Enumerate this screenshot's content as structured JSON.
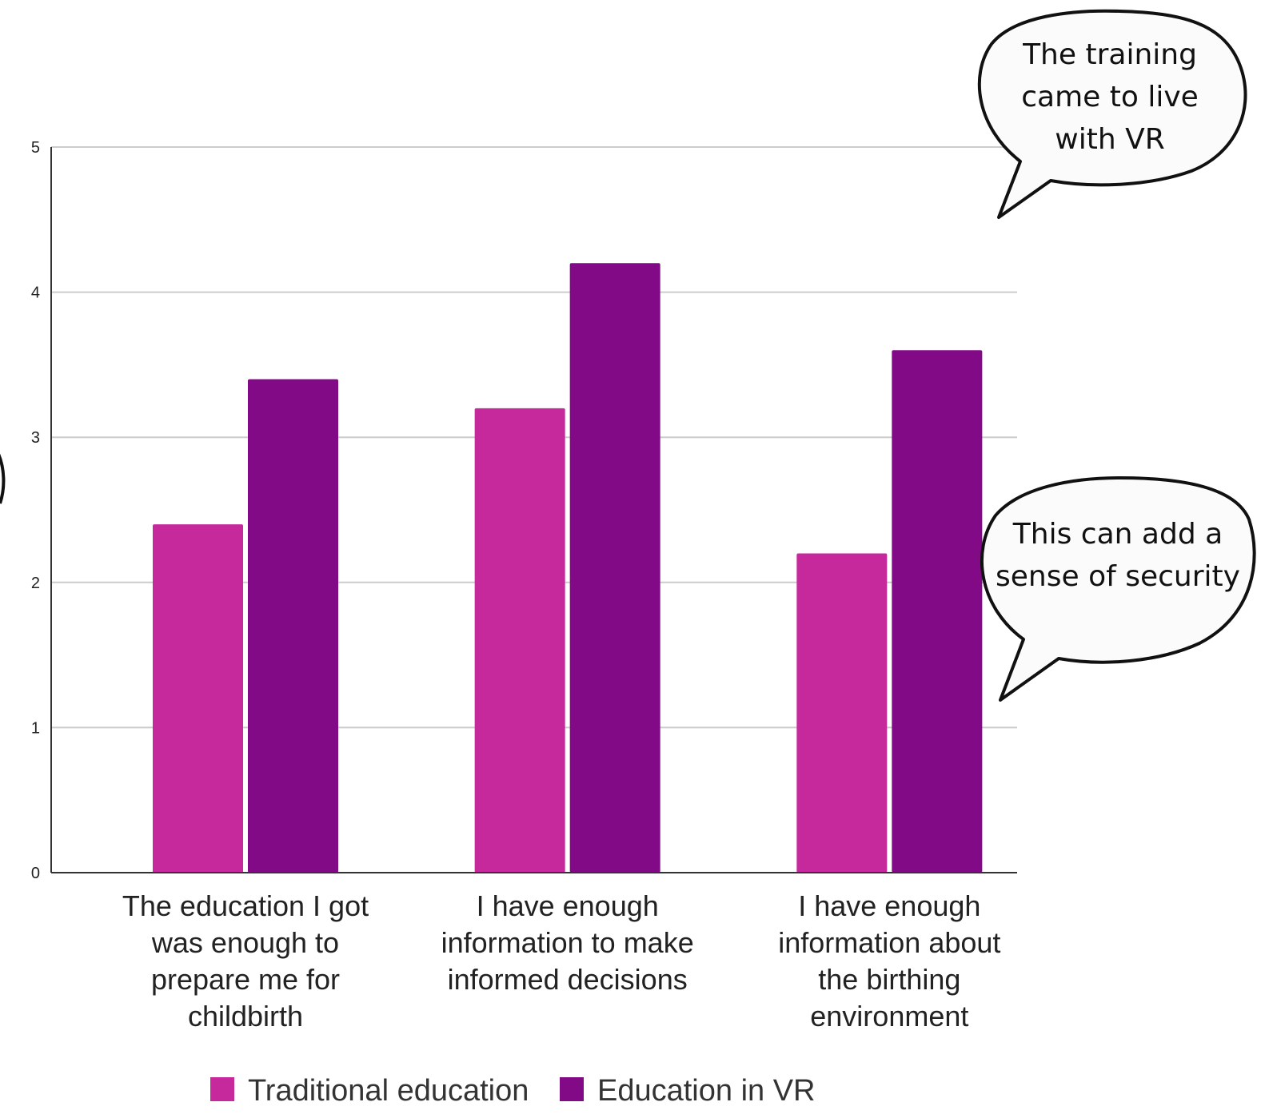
{
  "chart_data": {
    "type": "bar",
    "categories": [
      [
        "The education I got",
        "was enough to",
        "prepare me for",
        "childbirth"
      ],
      [
        "I have enough",
        "information to make",
        "informed decisions"
      ],
      [
        "I have enough",
        "information about",
        "the birthing",
        "environment"
      ]
    ],
    "series": [
      {
        "name": "Traditional education",
        "values": [
          2.4,
          3.2,
          2.2
        ],
        "color": "#c5299b"
      },
      {
        "name": "Education in VR",
        "values": [
          3.4,
          4.2,
          3.6
        ],
        "color": "#830a87"
      }
    ],
    "ylim": [
      0,
      5
    ],
    "yticks": [
      "0",
      "1",
      "2",
      "3",
      "4",
      "5"
    ],
    "grid": true,
    "legend_position": "bottom-center",
    "annotations": [
      {
        "lines": [
          "The training",
          "came to live",
          "with VR"
        ]
      },
      {
        "lines": [
          "This can add a",
          "sense of security"
        ]
      }
    ]
  }
}
